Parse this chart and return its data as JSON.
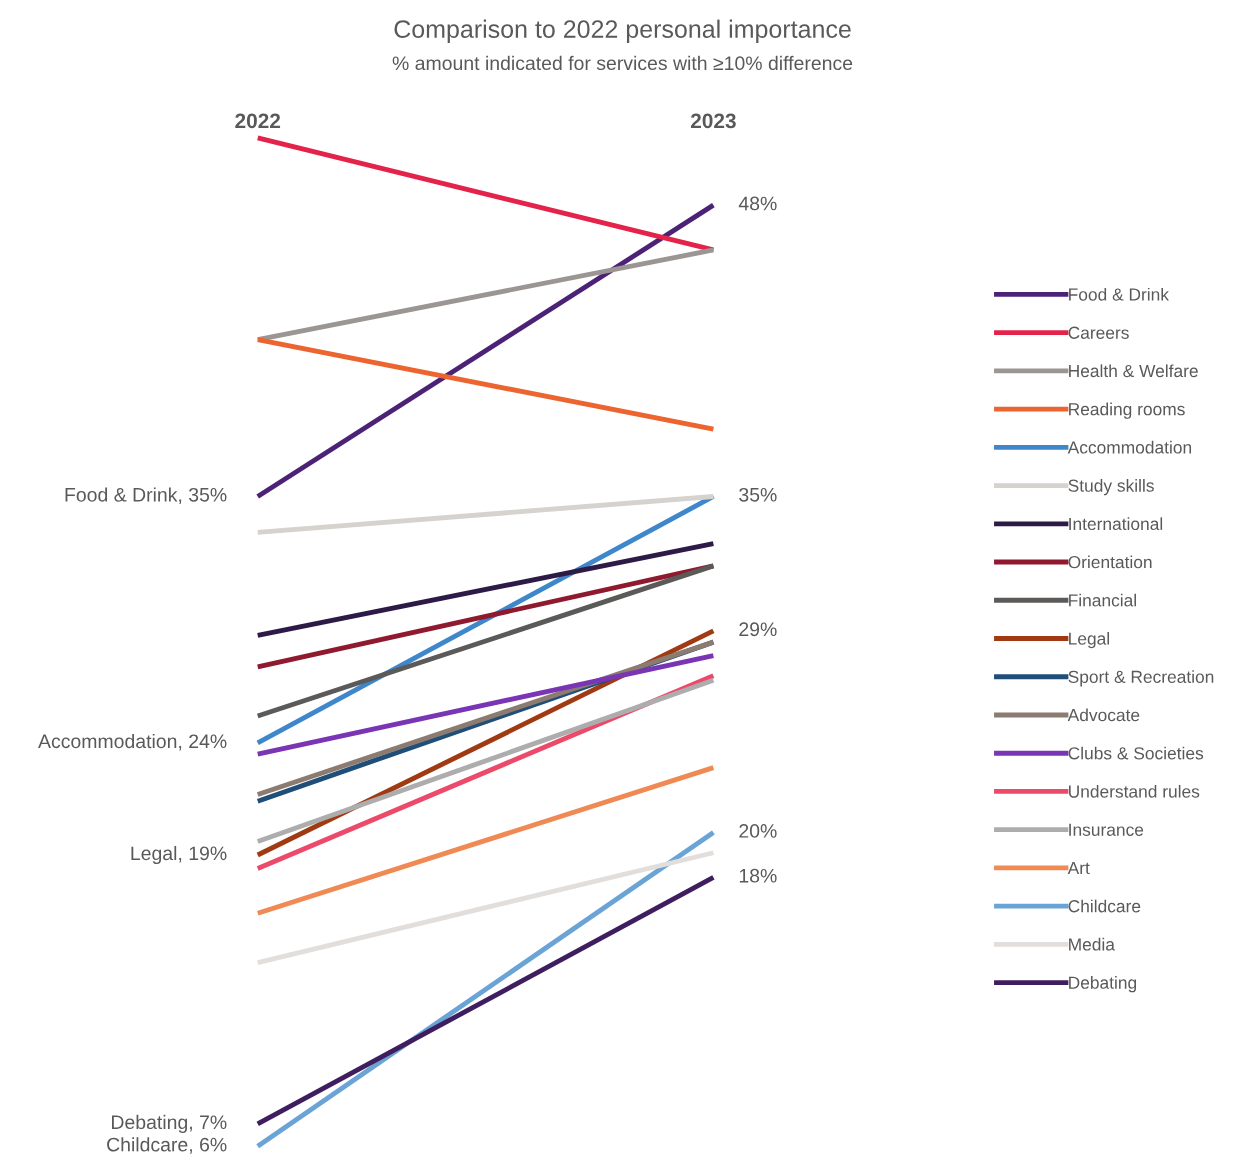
{
  "chart_data": {
    "type": "line",
    "title": "Comparison to 2022 personal importance",
    "subtitle": "% amount indicated for services with ≥10% difference",
    "categories": [
      "2022",
      "2023"
    ],
    "tick_labels": "x",
    "grid": false,
    "legend": "right",
    "marker": "none",
    "line_style": "solid",
    "series": [
      {
        "name": "Food & Drink",
        "color": "#4b2275",
        "values": [
          35,
          48
        ],
        "value_labels": [
          "Food & Drink, 35%",
          "48%"
        ]
      },
      {
        "name": "Careers",
        "color": "#e4234a",
        "values": [
          51,
          46
        ],
        "value_labels": [
          null,
          null
        ]
      },
      {
        "name": "Health & Welfare",
        "color": "#9b9693",
        "values": [
          42,
          46
        ],
        "value_labels": [
          null,
          null
        ]
      },
      {
        "name": "Reading rooms",
        "color": "#ec6430",
        "values": [
          42,
          38
        ],
        "value_labels": [
          null,
          null
        ]
      },
      {
        "name": "Accommodation",
        "color": "#3f87cb",
        "values": [
          24,
          35
        ],
        "value_labels": [
          "Accommodation, 24%",
          "35%"
        ]
      },
      {
        "name": "Study skills",
        "color": "#d6d2cd",
        "values": [
          33.4,
          35
        ],
        "value_labels": [
          null,
          null
        ]
      },
      {
        "name": "International",
        "color": "#2e1a47",
        "values": [
          28.8,
          32.9
        ],
        "value_labels": [
          null,
          null
        ]
      },
      {
        "name": "Orientation",
        "color": "#8f1a30",
        "values": [
          27.4,
          31.9
        ],
        "value_labels": [
          null,
          null
        ]
      },
      {
        "name": "Financial",
        "color": "#5b5a58",
        "values": [
          25.2,
          31.9
        ],
        "value_labels": [
          null,
          null
        ]
      },
      {
        "name": "Legal",
        "color": "#a03a12",
        "values": [
          19,
          29
        ],
        "value_labels": [
          "Legal, 19%",
          "29%"
        ]
      },
      {
        "name": "Sport & Recreation",
        "color": "#1f4e79",
        "values": [
          21.4,
          28.5
        ],
        "value_labels": [
          null,
          null
        ]
      },
      {
        "name": "Advocate",
        "color": "#8c7b70",
        "values": [
          21.7,
          28.5
        ],
        "value_labels": [
          null,
          null
        ]
      },
      {
        "name": "Clubs & Societies",
        "color": "#7a35b5",
        "values": [
          23.5,
          27.9
        ],
        "value_labels": [
          null,
          null
        ]
      },
      {
        "name": "Understand rules",
        "color": "#ec4a6a",
        "values": [
          18.4,
          27
        ],
        "value_labels": [
          null,
          null
        ]
      },
      {
        "name": "Insurance",
        "color": "#adadad",
        "values": [
          19.6,
          26.8
        ],
        "value_labels": [
          null,
          null
        ]
      },
      {
        "name": "Art",
        "color": "#f08a55",
        "values": [
          16.4,
          22.9
        ],
        "value_labels": [
          null,
          null
        ]
      },
      {
        "name": "Childcare",
        "color": "#6aa3d6",
        "values": [
          6,
          20
        ],
        "value_labels": [
          "Childcare, 6%",
          "20%"
        ]
      },
      {
        "name": "Media",
        "color": "#e2dedb",
        "values": [
          14.2,
          19.1
        ],
        "value_labels": [
          null,
          null
        ]
      },
      {
        "name": "Debating",
        "color": "#3f1e5f",
        "values": [
          7,
          18
        ],
        "value_labels": [
          "Debating, 7%",
          "18%"
        ]
      }
    ]
  }
}
